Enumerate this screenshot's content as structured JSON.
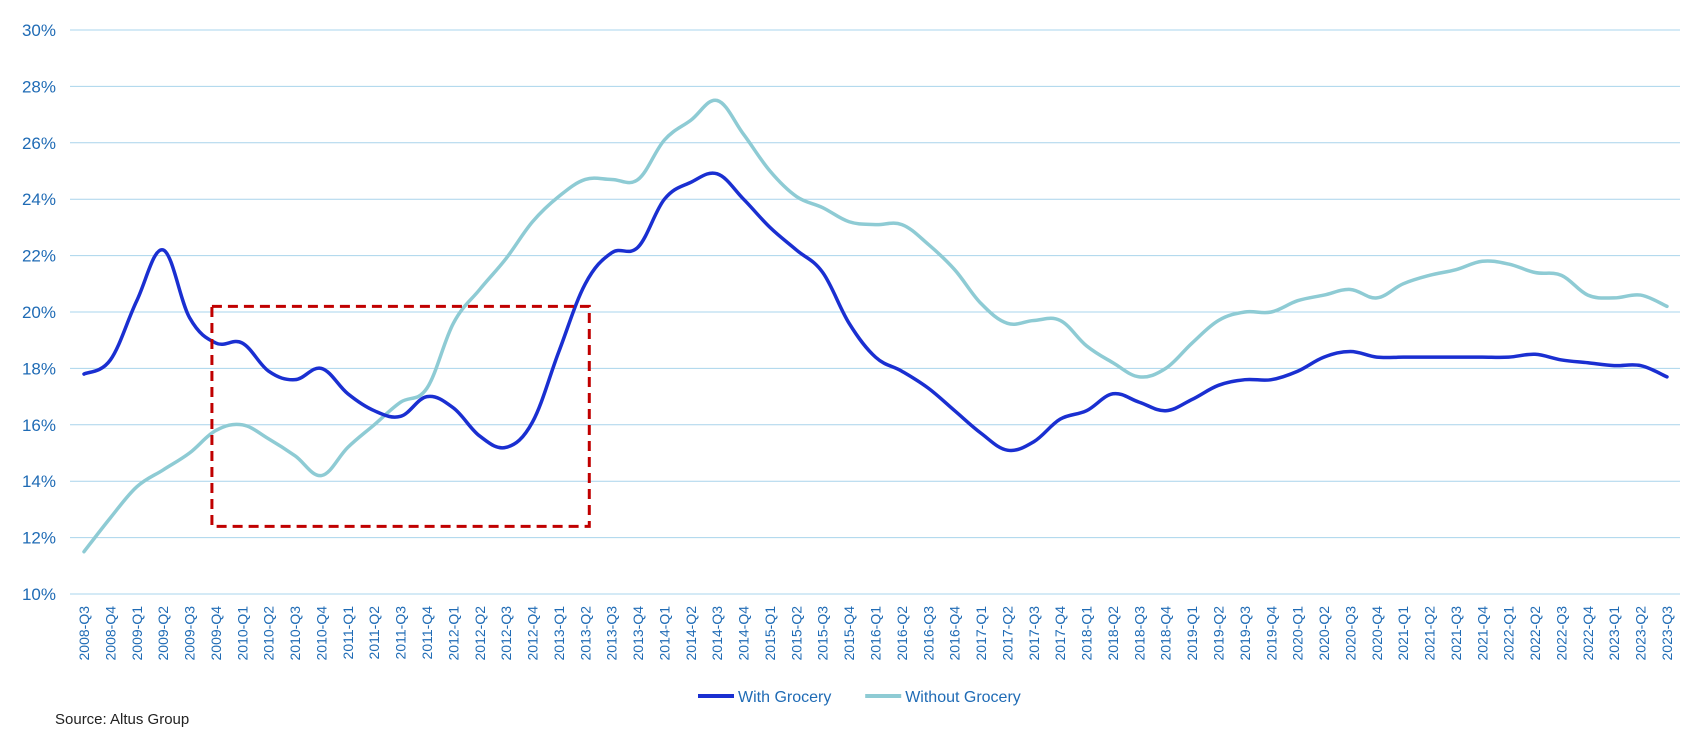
{
  "chart_data": {
    "type": "line",
    "title": "",
    "xlabel": "",
    "ylabel": "",
    "ylim": [
      10,
      30
    ],
    "yticks": [
      "10%",
      "12%",
      "14%",
      "16%",
      "18%",
      "20%",
      "22%",
      "24%",
      "26%",
      "28%",
      "30%"
    ],
    "grid": true,
    "legend_position": "bottom-center",
    "categories": [
      "2008-Q3",
      "2008-Q4",
      "2009-Q1",
      "2009-Q2",
      "2009-Q3",
      "2009-Q4",
      "2010-Q1",
      "2010-Q2",
      "2010-Q3",
      "2010-Q4",
      "2011-Q1",
      "2011-Q2",
      "2011-Q3",
      "2011-Q4",
      "2012-Q1",
      "2012-Q2",
      "2012-Q3",
      "2012-Q4",
      "2013-Q1",
      "2013-Q2",
      "2013-Q3",
      "2013-Q4",
      "2014-Q1",
      "2014-Q2",
      "2014-Q3",
      "2014-Q4",
      "2015-Q1",
      "2015-Q2",
      "2015-Q3",
      "2015-Q4",
      "2016-Q1",
      "2016-Q2",
      "2016-Q3",
      "2016-Q4",
      "2017-Q1",
      "2017-Q2",
      "2017-Q3",
      "2017-Q4",
      "2018-Q1",
      "2018-Q2",
      "2018-Q3",
      "2018-Q4",
      "2019-Q1",
      "2019-Q2",
      "2019-Q3",
      "2019-Q4",
      "2020-Q1",
      "2020-Q2",
      "2020-Q3",
      "2020-Q4",
      "2021-Q1",
      "2021-Q2",
      "2021-Q3",
      "2021-Q4",
      "2022-Q1",
      "2022-Q2",
      "2022-Q3",
      "2022-Q4",
      "2023-Q1",
      "2023-Q2",
      "2023-Q3"
    ],
    "series": [
      {
        "name": "With Grocery",
        "color": "#1a2fd1",
        "values": [
          17.8,
          18.3,
          20.4,
          22.2,
          19.8,
          18.9,
          18.9,
          17.9,
          17.6,
          18.0,
          17.1,
          16.5,
          16.3,
          17.0,
          16.6,
          15.6,
          15.2,
          16.1,
          18.6,
          21.0,
          22.1,
          22.3,
          24.0,
          24.6,
          24.9,
          24.0,
          23.0,
          22.2,
          21.4,
          19.6,
          18.4,
          17.9,
          17.3,
          16.5,
          15.7,
          15.1,
          15.4,
          16.2,
          16.5,
          17.1,
          16.8,
          16.5,
          16.9,
          17.4,
          17.6,
          17.6,
          17.9,
          18.4,
          18.6,
          18.4,
          18.4,
          18.4,
          18.4,
          18.4,
          18.4,
          18.5,
          18.3,
          18.2,
          18.1,
          18.1,
          17.7
        ]
      },
      {
        "name": "Without Grocery",
        "color": "#8ecbd4",
        "values": [
          11.5,
          12.7,
          13.8,
          14.4,
          15.0,
          15.8,
          16.0,
          15.5,
          14.9,
          14.2,
          15.2,
          16.0,
          16.8,
          17.3,
          19.6,
          20.8,
          21.9,
          23.2,
          24.1,
          24.7,
          24.7,
          24.7,
          26.1,
          26.8,
          27.5,
          26.3,
          25.0,
          24.1,
          23.7,
          23.2,
          23.1,
          23.1,
          22.4,
          21.5,
          20.3,
          19.6,
          19.7,
          19.7,
          18.8,
          18.2,
          17.7,
          18.0,
          18.9,
          19.7,
          20.0,
          20.0,
          20.4,
          20.6,
          20.8,
          20.5,
          21.0,
          21.3,
          21.5,
          21.8,
          21.7,
          21.4,
          21.3,
          20.6,
          20.5,
          20.6,
          20.2
        ]
      }
    ],
    "annotations": [
      {
        "type": "dashed-rectangle",
        "color": "#c00000",
        "x_start": "2009-Q4",
        "x_end": "2013-Q2",
        "y_min": 12.4,
        "y_max": 20.2
      }
    ],
    "colors": {
      "grid": "#a9d4ec",
      "tick_text": "#1f6bb5"
    }
  },
  "source": "Source: Altus Group"
}
